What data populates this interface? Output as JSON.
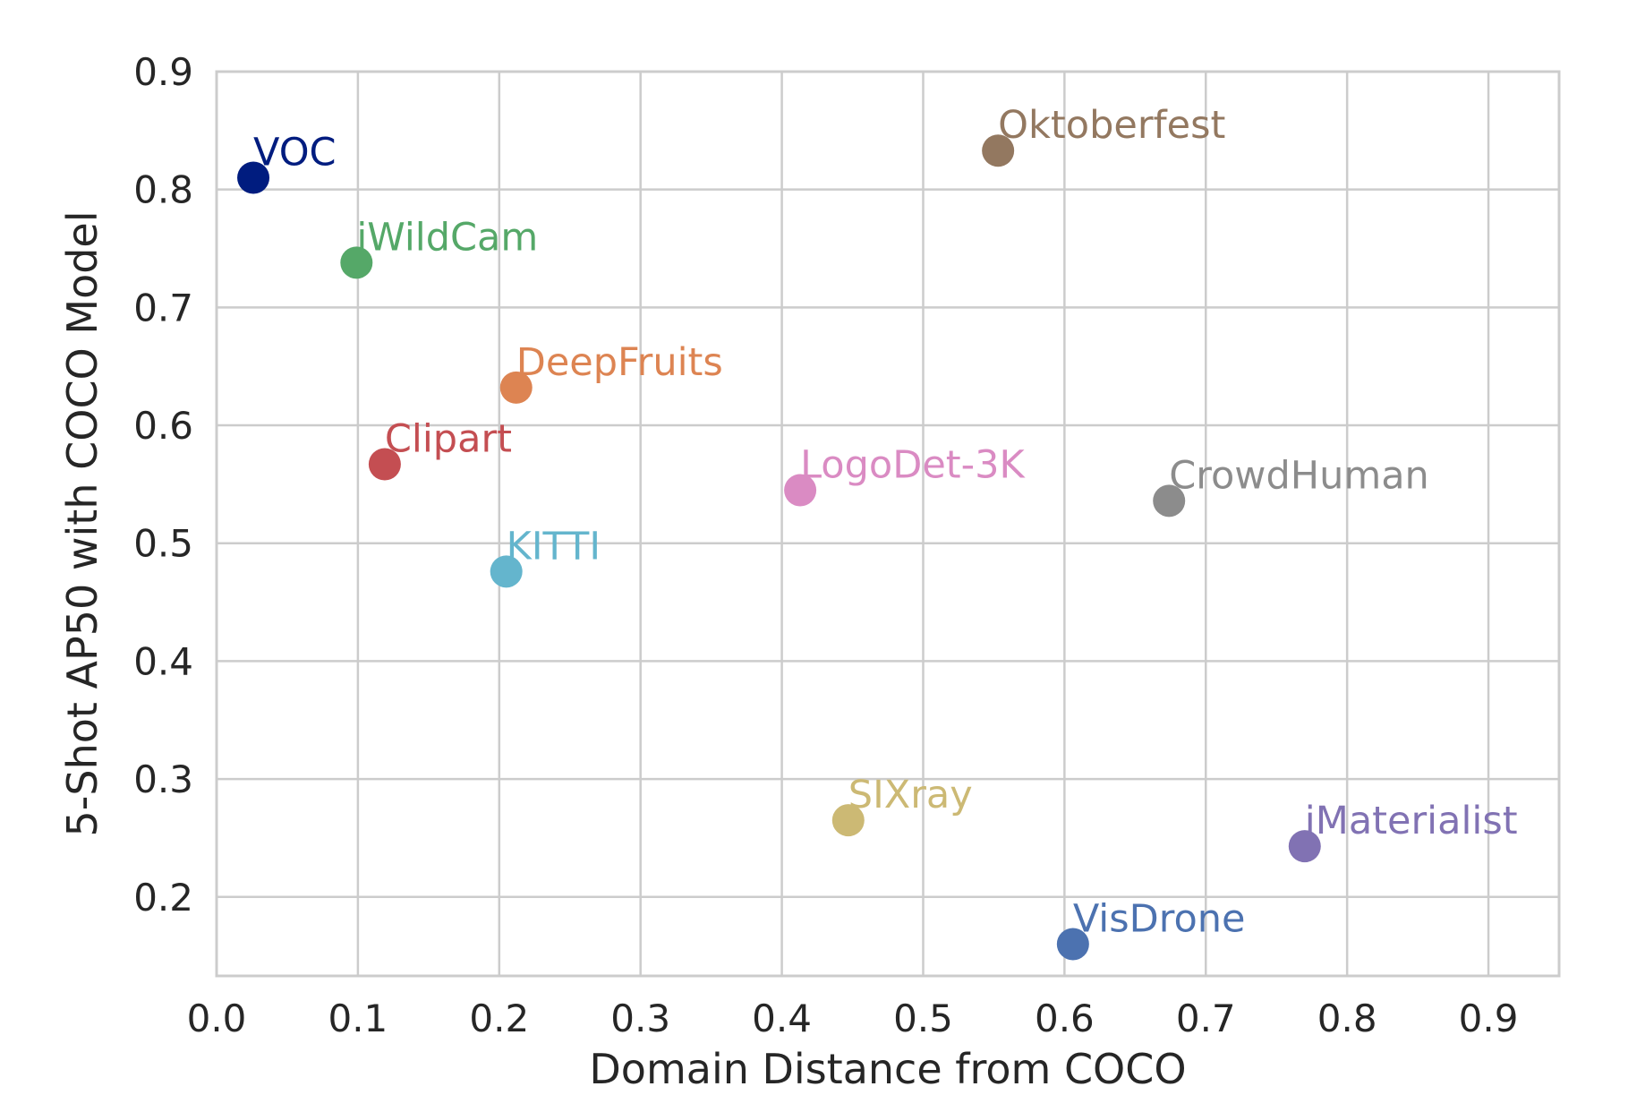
{
  "chart_data": {
    "type": "scatter",
    "title": "",
    "xlabel": "Domain Distance from COCO",
    "ylabel": "5-Shot AP50 with COCO Model",
    "xlim": [
      0.0,
      0.95
    ],
    "ylim": [
      0.133,
      0.9
    ],
    "x_ticks": [
      0.0,
      0.1,
      0.2,
      0.3,
      0.4,
      0.5,
      0.6,
      0.7,
      0.8,
      0.9
    ],
    "x_tick_labels": [
      "0.0",
      "0.1",
      "0.2",
      "0.3",
      "0.4",
      "0.5",
      "0.6",
      "0.7",
      "0.8",
      "0.9"
    ],
    "y_ticks": [
      0.2,
      0.3,
      0.4,
      0.5,
      0.6,
      0.7,
      0.8,
      0.9
    ],
    "y_tick_labels": [
      "0.2",
      "0.3",
      "0.4",
      "0.5",
      "0.6",
      "0.7",
      "0.8",
      "0.9"
    ],
    "grid": true,
    "legend": "none",
    "points": [
      {
        "label": "VOC",
        "x": 0.026,
        "y": 0.81,
        "color": "#001c7f"
      },
      {
        "label": "iWildCam",
        "x": 0.099,
        "y": 0.738,
        "color": "#55a868"
      },
      {
        "label": "DeepFruits",
        "x": 0.212,
        "y": 0.632,
        "color": "#dd8452"
      },
      {
        "label": "Clipart",
        "x": 0.119,
        "y": 0.567,
        "color": "#c44e52"
      },
      {
        "label": "KITTI",
        "x": 0.205,
        "y": 0.476,
        "color": "#64b5cd"
      },
      {
        "label": "LogoDet-3K",
        "x": 0.413,
        "y": 0.545,
        "color": "#da8bc3"
      },
      {
        "label": "Oktoberfest",
        "x": 0.553,
        "y": 0.833,
        "color": "#937860"
      },
      {
        "label": "CrowdHuman",
        "x": 0.674,
        "y": 0.536,
        "color": "#8c8c8c"
      },
      {
        "label": "SIXray",
        "x": 0.447,
        "y": 0.265,
        "color": "#ccb974"
      },
      {
        "label": "iMaterialist",
        "x": 0.77,
        "y": 0.243,
        "color": "#8172b3"
      },
      {
        "label": "VisDrone",
        "x": 0.606,
        "y": 0.16,
        "color": "#4c72b0"
      }
    ]
  }
}
